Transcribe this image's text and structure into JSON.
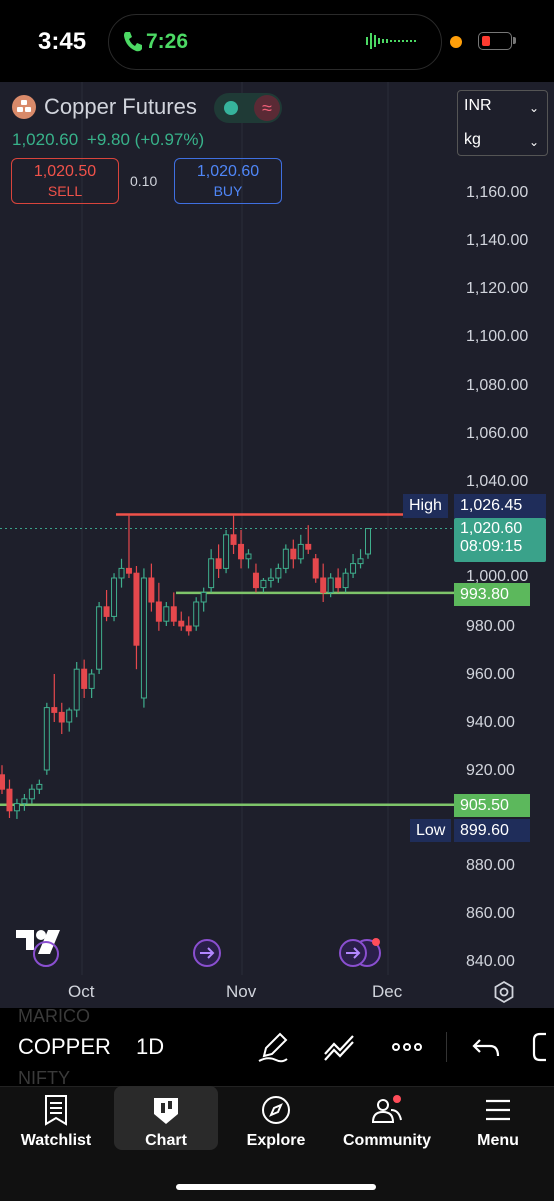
{
  "status_bar": {
    "time": "3:45",
    "call_time": "7:26"
  },
  "header": {
    "title": "Copper Futures",
    "price": "1,020.60",
    "change": "+9.80",
    "change_pct": "(+0.97%)",
    "sell": {
      "price": "1,020.50",
      "label": "SELL"
    },
    "buy": {
      "price": "1,020.60",
      "label": "BUY"
    },
    "spread": "0.10",
    "currency": "INR",
    "unit": "kg"
  },
  "price_axis": [
    "1,160.00",
    "1,140.00",
    "1,120.00",
    "1,100.00",
    "1,080.00",
    "1,060.00",
    "1,040.00",
    "1,000.00",
    "980.00",
    "960.00",
    "940.00",
    "920.00",
    "880.00",
    "860.00",
    "840.00"
  ],
  "time_axis": [
    "Oct",
    "Nov",
    "Dec"
  ],
  "tags": {
    "high_label": "High",
    "high_value": "1,026.45",
    "last_price": "1,020.60",
    "countdown": "08:09:15",
    "support_1": "993.80",
    "support_2": "905.50",
    "low_label": "Low",
    "low_value": "899.60"
  },
  "chart_data": {
    "type": "candlestick",
    "ylim": [
      835,
      1170
    ],
    "resistance": 1026.45,
    "supports": [
      993.8,
      905.5
    ],
    "candles": [
      {
        "o": 918,
        "h": 922,
        "l": 910,
        "c": 912
      },
      {
        "o": 912,
        "h": 916,
        "l": 900,
        "c": 903
      },
      {
        "o": 903,
        "h": 908,
        "l": 899.6,
        "c": 906
      },
      {
        "o": 906,
        "h": 910,
        "l": 903,
        "c": 908
      },
      {
        "o": 908,
        "h": 914,
        "l": 906,
        "c": 912
      },
      {
        "o": 912,
        "h": 916,
        "l": 910,
        "c": 914
      },
      {
        "o": 920,
        "h": 948,
        "l": 918,
        "c": 946
      },
      {
        "o": 946,
        "h": 960,
        "l": 940,
        "c": 944
      },
      {
        "o": 944,
        "h": 948,
        "l": 935,
        "c": 940
      },
      {
        "o": 940,
        "h": 946,
        "l": 936,
        "c": 945
      },
      {
        "o": 945,
        "h": 965,
        "l": 942,
        "c": 962
      },
      {
        "o": 962,
        "h": 966,
        "l": 950,
        "c": 954
      },
      {
        "o": 954,
        "h": 962,
        "l": 950,
        "c": 960
      },
      {
        "o": 962,
        "h": 990,
        "l": 960,
        "c": 988
      },
      {
        "o": 988,
        "h": 995,
        "l": 982,
        "c": 984
      },
      {
        "o": 984,
        "h": 1002,
        "l": 982,
        "c": 1000
      },
      {
        "o": 1000,
        "h": 1008,
        "l": 996,
        "c": 1004
      },
      {
        "o": 1004,
        "h": 1026,
        "l": 1000,
        "c": 1002
      },
      {
        "o": 1002,
        "h": 1005,
        "l": 962,
        "c": 972
      },
      {
        "o": 950,
        "h": 1004,
        "l": 946,
        "c": 1000
      },
      {
        "o": 1000,
        "h": 1006,
        "l": 986,
        "c": 990
      },
      {
        "o": 990,
        "h": 998,
        "l": 978,
        "c": 982
      },
      {
        "o": 982,
        "h": 990,
        "l": 980,
        "c": 988
      },
      {
        "o": 988,
        "h": 994,
        "l": 980,
        "c": 982
      },
      {
        "o": 982,
        "h": 986,
        "l": 978,
        "c": 980
      },
      {
        "o": 980,
        "h": 984,
        "l": 976,
        "c": 978
      },
      {
        "o": 980,
        "h": 992,
        "l": 978,
        "c": 990
      },
      {
        "o": 990,
        "h": 996,
        "l": 986,
        "c": 994
      },
      {
        "o": 996,
        "h": 1012,
        "l": 994,
        "c": 1008
      },
      {
        "o": 1008,
        "h": 1014,
        "l": 1000,
        "c": 1004
      },
      {
        "o": 1004,
        "h": 1020,
        "l": 1002,
        "c": 1018
      },
      {
        "o": 1018,
        "h": 1026,
        "l": 1010,
        "c": 1014
      },
      {
        "o": 1014,
        "h": 1020,
        "l": 1004,
        "c": 1008
      },
      {
        "o": 1008,
        "h": 1012,
        "l": 1004,
        "c": 1010
      },
      {
        "o": 1002,
        "h": 1006,
        "l": 994,
        "c": 996
      },
      {
        "o": 996,
        "h": 1000,
        "l": 994,
        "c": 999
      },
      {
        "o": 999,
        "h": 1004,
        "l": 996,
        "c": 1000
      },
      {
        "o": 1000,
        "h": 1006,
        "l": 998,
        "c": 1004
      },
      {
        "o": 1004,
        "h": 1014,
        "l": 1002,
        "c": 1012
      },
      {
        "o": 1012,
        "h": 1016,
        "l": 1004,
        "c": 1008
      },
      {
        "o": 1008,
        "h": 1018,
        "l": 1006,
        "c": 1014
      },
      {
        "o": 1014,
        "h": 1022,
        "l": 1010,
        "c": 1012
      },
      {
        "o": 1008,
        "h": 1010,
        "l": 998,
        "c": 1000
      },
      {
        "o": 1000,
        "h": 1006,
        "l": 990,
        "c": 994
      },
      {
        "o": 994,
        "h": 1002,
        "l": 992,
        "c": 1000
      },
      {
        "o": 1000,
        "h": 1004,
        "l": 994,
        "c": 996
      },
      {
        "o": 996,
        "h": 1004,
        "l": 994,
        "c": 1002
      },
      {
        "o": 1002,
        "h": 1010,
        "l": 1000,
        "c": 1006
      },
      {
        "o": 1006,
        "h": 1012,
        "l": 1004,
        "c": 1008
      },
      {
        "o": 1010,
        "h": 1020.6,
        "l": 1008,
        "c": 1020.6
      }
    ]
  },
  "toolbar": {
    "symbol": "COPPER",
    "interval": "1D",
    "ghost_above": "MARICO",
    "ghost_below": "NIFTY"
  },
  "tabs": [
    {
      "label": "Watchlist"
    },
    {
      "label": "Chart"
    },
    {
      "label": "Explore"
    },
    {
      "label": "Community"
    },
    {
      "label": "Menu"
    }
  ]
}
